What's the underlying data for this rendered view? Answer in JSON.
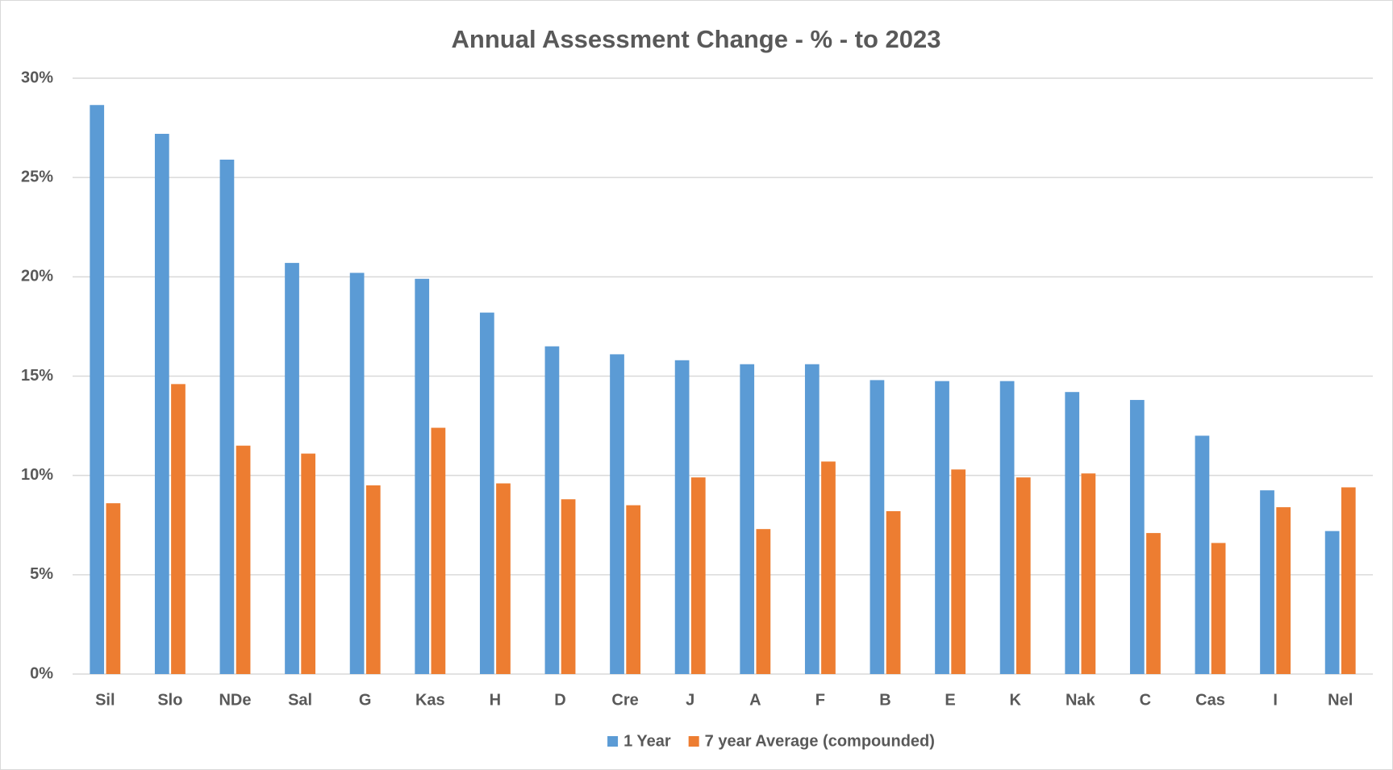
{
  "chart_data": {
    "type": "bar",
    "title": "Annual Assessment Change - % - to 2023",
    "categories": [
      "Sil",
      "Slo",
      "NDe",
      "Sal",
      "G",
      "Kas",
      "H",
      "D",
      "Cre",
      "J",
      "A",
      "F",
      "B",
      "E",
      "K",
      "Nak",
      "C",
      "Cas",
      "I",
      "Nel"
    ],
    "series": [
      {
        "name": "1 Year",
        "color": "#5b9bd5",
        "values": [
          28.65,
          27.2,
          25.9,
          20.7,
          20.2,
          19.9,
          18.2,
          16.5,
          16.1,
          15.8,
          15.6,
          15.6,
          14.8,
          14.75,
          14.75,
          14.2,
          13.8,
          12.0,
          9.25,
          7.2
        ]
      },
      {
        "name": "7 year Average (compounded)",
        "color": "#ed7d31",
        "values": [
          8.6,
          14.6,
          11.5,
          11.1,
          9.5,
          12.4,
          9.6,
          8.8,
          8.5,
          9.9,
          7.3,
          10.7,
          8.2,
          10.3,
          9.9,
          10.1,
          7.1,
          6.6,
          8.4,
          9.4
        ]
      }
    ],
    "ylim": [
      0,
      30
    ],
    "yticks": [
      {
        "value": 0,
        "label": "0%"
      },
      {
        "value": 5,
        "label": "5%"
      },
      {
        "value": 10,
        "label": "10%"
      },
      {
        "value": 15,
        "label": "15%"
      },
      {
        "value": 20,
        "label": "20%"
      },
      {
        "value": 25,
        "label": "25%"
      },
      {
        "value": 30,
        "label": "30%"
      }
    ],
    "grid": true,
    "legend": "bottom"
  }
}
